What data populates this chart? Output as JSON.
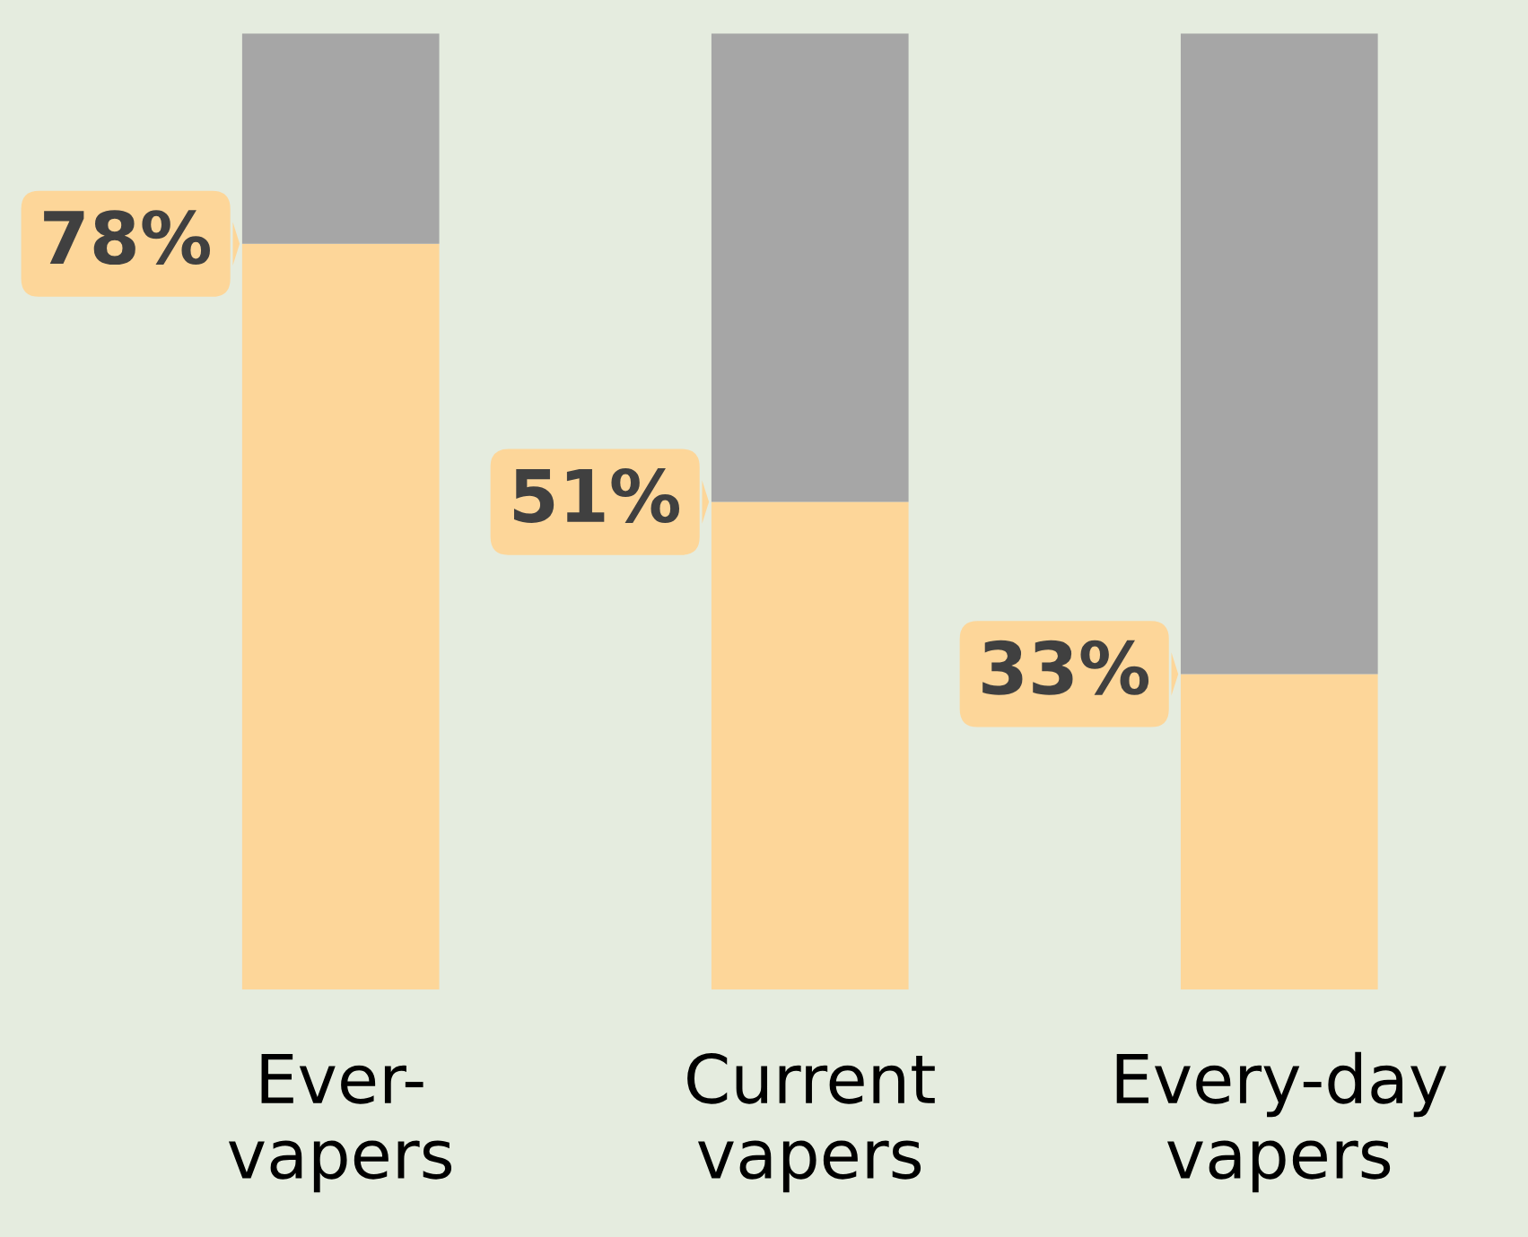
{
  "chart_data": {
    "type": "bar",
    "stacked": true,
    "categories": [
      "Ever-\nvapers",
      "Current\nvapers",
      "Every-day\nvapers"
    ],
    "series": [
      {
        "color": "#fdd699",
        "values": [
          78,
          51,
          33
        ],
        "value_labels": [
          "78%",
          "51%",
          "33%"
        ]
      },
      {
        "color": "#a6a6a6",
        "values": [
          22,
          49,
          67
        ]
      }
    ],
    "tick_labels": "x",
    "legend": false,
    "grid": false
  }
}
